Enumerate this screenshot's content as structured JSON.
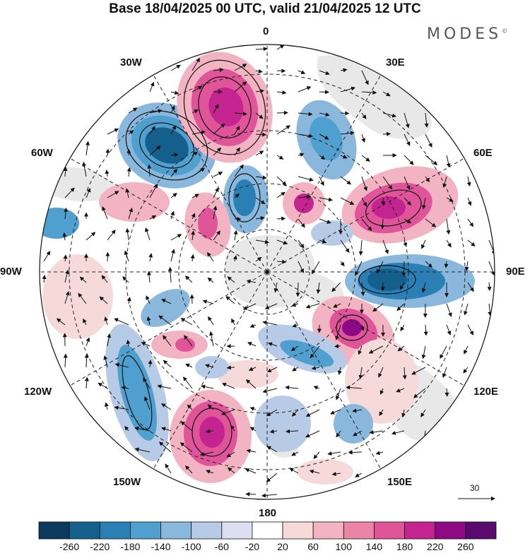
{
  "title": "Base 18/04/2025 00 UTC, valid 21/04/2025 12 UTC",
  "brand": "MODES",
  "brand_mark": "©",
  "lon_labels": {
    "n0": "0",
    "n30e": "30E",
    "n60e": "60E",
    "n90e": "90E",
    "n120e": "120E",
    "n150e": "150E",
    "n180": "180",
    "n150w": "150W",
    "n120w": "120W",
    "n90w": "90W",
    "n60w": "60W",
    "n30w": "30W"
  },
  "vector_scale_label": "30",
  "colorbar": {
    "ticks": [
      "-260",
      "-220",
      "-180",
      "-140",
      "-100",
      "-60",
      "-20",
      "20",
      "60",
      "100",
      "140",
      "180",
      "220",
      "260"
    ],
    "colors": [
      "#0b3a5c",
      "#155f8c",
      "#2a7fb4",
      "#4f9fcf",
      "#8ab8dd",
      "#b8cbe6",
      "#dcdff0",
      "#ffffff",
      "#f6dada",
      "#f2b4c2",
      "#ec84a8",
      "#e0559a",
      "#c42490",
      "#8e0a84",
      "#5a0a6e"
    ]
  },
  "map": {
    "projection": "south-polar-stereographic",
    "field": "anomaly",
    "blobs": [
      {
        "name": "neg-60w-30w",
        "sign": "neg",
        "level": 6
      },
      {
        "name": "pos-30w-0",
        "sign": "pos",
        "level": 5
      },
      {
        "name": "neg-0-30e",
        "sign": "neg",
        "level": 4
      },
      {
        "name": "pos-60e",
        "sign": "pos",
        "level": 5
      },
      {
        "name": "neg-90e",
        "sign": "neg",
        "level": 6
      },
      {
        "name": "pos-120e-near",
        "sign": "pos",
        "level": 5
      },
      {
        "name": "neg-150w",
        "sign": "neg",
        "level": 4
      },
      {
        "name": "pos-150w-180",
        "sign": "pos",
        "level": 5
      },
      {
        "name": "neg-70w",
        "sign": "neg",
        "level": 4
      }
    ]
  }
}
